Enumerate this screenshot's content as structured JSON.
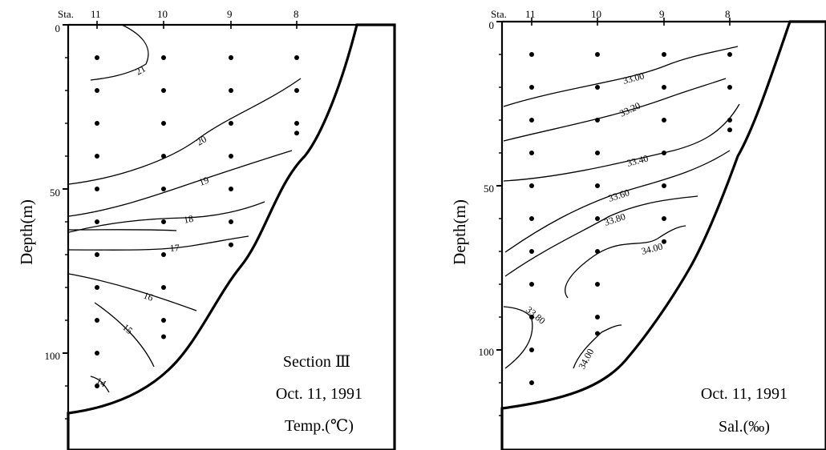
{
  "chart_data": [
    {
      "type": "contour",
      "panel": "left",
      "ylabel": "Depth(m)",
      "station_prefix": "Sta.",
      "stations": [
        "11",
        "10",
        "9",
        "8"
      ],
      "y_ticks": [
        "0",
        "50",
        "100"
      ],
      "ylim": [
        0,
        125
      ],
      "y_inverted": true,
      "sample_points": {
        "11": [
          10,
          20,
          30,
          40,
          50,
          60,
          70,
          80,
          90,
          100,
          110
        ],
        "10": [
          10,
          20,
          30,
          40,
          50,
          60,
          70,
          80,
          90,
          95
        ],
        "9": [
          10,
          20,
          30,
          40,
          50,
          60,
          67
        ],
        "8": [
          10,
          20,
          30,
          33
        ]
      },
      "contour_labels": [
        "21",
        "20",
        "19",
        "18",
        "17",
        "16",
        "15",
        "14"
      ],
      "annotations": [
        "Section Ⅲ",
        "Oct. 11, 1991",
        "Temp.(℃)"
      ]
    },
    {
      "type": "contour",
      "panel": "right",
      "ylabel": "Depth(m)",
      "station_prefix": "Sta.",
      "stations": [
        "11",
        "10",
        "9",
        "8"
      ],
      "y_ticks": [
        "0",
        "50",
        "100"
      ],
      "ylim": [
        0,
        125
      ],
      "y_inverted": true,
      "sample_points": {
        "11": [
          10,
          20,
          30,
          40,
          50,
          60,
          70,
          80,
          90,
          100,
          110
        ],
        "10": [
          10,
          20,
          30,
          40,
          50,
          60,
          70,
          80,
          90,
          95
        ],
        "9": [
          10,
          20,
          30,
          40,
          50,
          60,
          67
        ],
        "8": [
          10,
          20,
          30,
          33
        ]
      },
      "contour_labels": [
        "33.00",
        "33.20",
        "33.40",
        "33.60",
        "33.80",
        "34.00",
        "33.80",
        "34.00"
      ],
      "annotations": [
        "Oct. 11, 1991",
        "Sal.(‰)"
      ]
    }
  ]
}
